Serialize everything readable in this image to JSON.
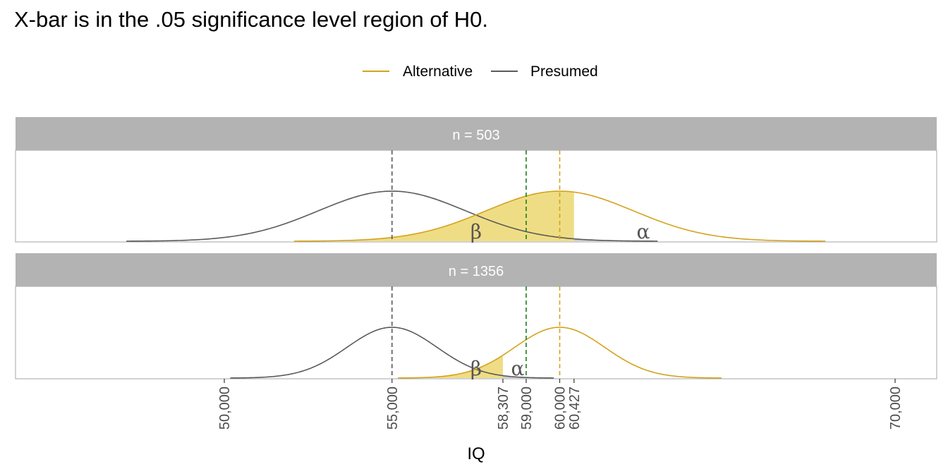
{
  "chart_data": {
    "type": "area",
    "title": "X-bar is in the .05 significance level region of H0.",
    "xlabel": "IQ",
    "legend": {
      "position": "top",
      "entries": [
        {
          "name": "Alternative",
          "color": "#d4a21c"
        },
        {
          "name": "Presumed",
          "color": "#5a5a5a"
        }
      ]
    },
    "xlim": [
      44000,
      72500
    ],
    "x_ticks": [
      50000,
      55000,
      58307,
      59000,
      60000,
      60427,
      70000
    ],
    "x_tick_labels": [
      "50,000",
      "55,000",
      "58,307",
      "59,000",
      "60,000",
      "60,427",
      "70,000"
    ],
    "presumed_mean": 55000,
    "alternative_mean": 60000,
    "x_bar": 59000,
    "colors": {
      "alternative": "#d4a21c",
      "presumed": "#5a5a5a",
      "beta_fill": "#efdd85",
      "alpha_fill": "#cccccc",
      "x_bar_line": "#1a7f1a",
      "strip": "#b3b3b3"
    },
    "panels": [
      {
        "strip": "n = 503",
        "critical_value": 60427,
        "sd": 2200,
        "beta_label": "β",
        "alpha_label": "α"
      },
      {
        "strip": "n = 1356",
        "critical_value": 58307,
        "sd": 1340,
        "beta_label": "β",
        "alpha_label": "α"
      }
    ]
  }
}
